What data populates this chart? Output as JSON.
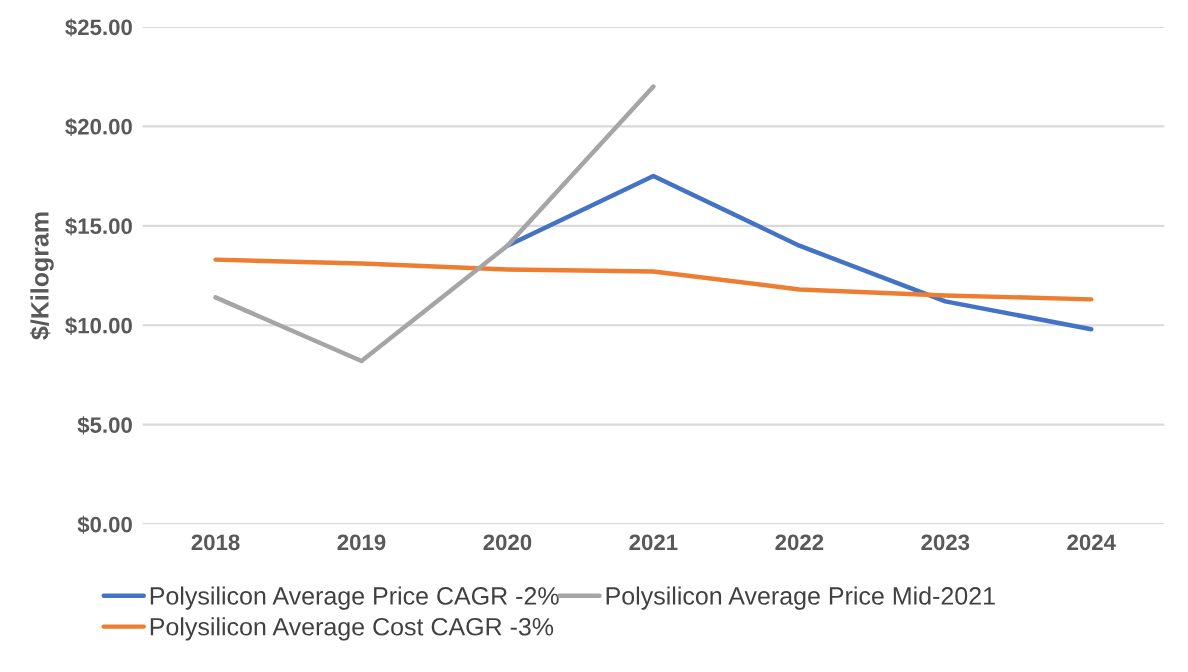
{
  "chart_data": {
    "type": "line",
    "ylabel": "$/Kilogram",
    "categories": [
      "2018",
      "2019",
      "2020",
      "2021",
      "2022",
      "2023",
      "2024"
    ],
    "series": [
      {
        "name": "Polysilicon Average Price CAGR -2%",
        "color": "#4472c4",
        "values": [
          null,
          null,
          14.0,
          17.5,
          14.0,
          11.2,
          9.8
        ]
      },
      {
        "name": "Polysilicon Average Cost CAGR -3%",
        "color": "#ed7d31",
        "values": [
          13.3,
          13.1,
          12.8,
          12.7,
          11.8,
          11.5,
          11.3
        ]
      },
      {
        "name": "Polysilicon Average Price Mid-2021",
        "color": "#a5a5a5",
        "values": [
          11.4,
          8.2,
          14.0,
          22.0,
          null,
          null,
          null
        ]
      }
    ],
    "ylim": [
      0,
      25
    ],
    "yticks": [
      {
        "value": 0,
        "label": "$0.00"
      },
      {
        "value": 5,
        "label": "$5.00"
      },
      {
        "value": 10,
        "label": "$10.00"
      },
      {
        "value": 15,
        "label": "$15.00"
      },
      {
        "value": 20,
        "label": "$20.00"
      },
      {
        "value": 25,
        "label": "$25.00"
      }
    ],
    "grid": "y",
    "legend": "bottom",
    "marker": "none",
    "line_style": "solid"
  }
}
